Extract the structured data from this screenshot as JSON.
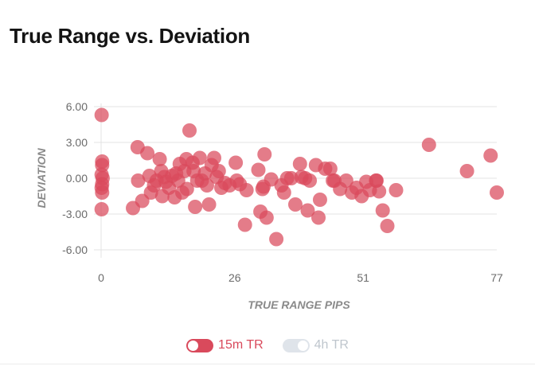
{
  "colors": {
    "series_active": "#d94a5c",
    "series_inactive": "#dfe4ea",
    "legend_text_active": "#d94a5c",
    "legend_text_inactive": "#bfc6cd"
  },
  "chart_data": {
    "type": "scatter",
    "title": "True Range vs. Deviation",
    "xlabel": "TRUE RANGE PIPS",
    "ylabel": "DEVIATION",
    "xlim": [
      0,
      77
    ],
    "ylim": [
      -6,
      6
    ],
    "xticks": [
      "0",
      "26",
      "51",
      "77"
    ],
    "xtick_values": [
      0,
      26,
      51,
      77
    ],
    "yticks": [
      "6.00",
      "3.00",
      "0.00",
      "-3.00",
      "-6.00"
    ],
    "ytick_values": [
      6,
      3,
      0,
      -3,
      -6
    ],
    "series": [
      {
        "name": "15m TR",
        "active": true,
        "points": [
          [
            0.1,
            5.3
          ],
          [
            0.2,
            1.4
          ],
          [
            0.2,
            1.1
          ],
          [
            0.1,
            0.3
          ],
          [
            0.3,
            0.0
          ],
          [
            0.2,
            -0.5
          ],
          [
            0.1,
            -0.8
          ],
          [
            0.2,
            -1.2
          ],
          [
            0.1,
            -2.6
          ],
          [
            6.2,
            -2.5
          ],
          [
            7.1,
            2.6
          ],
          [
            7.2,
            -0.2
          ],
          [
            8.0,
            -1.9
          ],
          [
            9.0,
            2.1
          ],
          [
            9.4,
            0.2
          ],
          [
            9.7,
            -1.2
          ],
          [
            10.3,
            -0.6
          ],
          [
            10.8,
            -0.2
          ],
          [
            11.4,
            1.6
          ],
          [
            11.7,
            0.6
          ],
          [
            11.9,
            -1.5
          ],
          [
            12.3,
            0.1
          ],
          [
            12.6,
            -0.3
          ],
          [
            13.2,
            -0.8
          ],
          [
            13.8,
            0.2
          ],
          [
            14.3,
            -1.6
          ],
          [
            14.6,
            0.4
          ],
          [
            15.0,
            -0.2
          ],
          [
            15.3,
            1.2
          ],
          [
            15.8,
            -1.2
          ],
          [
            16.2,
            0.6
          ],
          [
            16.6,
            1.6
          ],
          [
            16.7,
            -0.9
          ],
          [
            17.2,
            4.0
          ],
          [
            17.8,
            1.3
          ],
          [
            18.0,
            0.6
          ],
          [
            18.3,
            -2.4
          ],
          [
            18.7,
            -0.2
          ],
          [
            19.2,
            1.7
          ],
          [
            19.6,
            -0.2
          ],
          [
            20.2,
            0.4
          ],
          [
            20.6,
            -0.6
          ],
          [
            21.0,
            -2.2
          ],
          [
            21.5,
            1.1
          ],
          [
            22.0,
            1.7
          ],
          [
            22.5,
            0.1
          ],
          [
            22.9,
            0.6
          ],
          [
            23.4,
            -0.8
          ],
          [
            24.1,
            -0.4
          ],
          [
            25.0,
            -0.6
          ],
          [
            26.2,
            1.3
          ],
          [
            26.4,
            -0.2
          ],
          [
            27.0,
            -0.5
          ],
          [
            28.0,
            -3.9
          ],
          [
            28.3,
            -1.0
          ],
          [
            30.6,
            0.7
          ],
          [
            31.0,
            -2.8
          ],
          [
            31.4,
            -0.9
          ],
          [
            31.6,
            -0.7
          ],
          [
            31.8,
            2.0
          ],
          [
            32.2,
            -3.3
          ],
          [
            33.1,
            -0.1
          ],
          [
            34.1,
            -5.1
          ],
          [
            35.1,
            -0.6
          ],
          [
            35.6,
            -1.2
          ],
          [
            36.2,
            0.0
          ],
          [
            37.0,
            0.0
          ],
          [
            37.8,
            -2.2
          ],
          [
            38.7,
            1.2
          ],
          [
            39.0,
            0.1
          ],
          [
            39.7,
            0.0
          ],
          [
            40.2,
            -2.7
          ],
          [
            40.6,
            -0.2
          ],
          [
            41.8,
            1.1
          ],
          [
            42.3,
            -3.3
          ],
          [
            42.6,
            -1.8
          ],
          [
            43.6,
            0.8
          ],
          [
            44.6,
            0.8
          ],
          [
            45.1,
            -0.2
          ],
          [
            45.4,
            -0.2
          ],
          [
            46.5,
            -0.9
          ],
          [
            47.7,
            -0.2
          ],
          [
            48.8,
            -1.2
          ],
          [
            49.7,
            -0.8
          ],
          [
            50.7,
            -1.5
          ],
          [
            51.6,
            -0.3
          ],
          [
            52.3,
            -1.0
          ],
          [
            53.5,
            -0.2
          ],
          [
            53.6,
            -0.2
          ],
          [
            54.1,
            -1.1
          ],
          [
            54.8,
            -2.7
          ],
          [
            55.7,
            -4.0
          ],
          [
            57.4,
            -1.0
          ],
          [
            63.8,
            2.8
          ],
          [
            71.2,
            0.6
          ],
          [
            75.8,
            1.9
          ],
          [
            77.0,
            -1.2
          ]
        ]
      },
      {
        "name": "4h TR",
        "active": false,
        "points": []
      }
    ]
  }
}
